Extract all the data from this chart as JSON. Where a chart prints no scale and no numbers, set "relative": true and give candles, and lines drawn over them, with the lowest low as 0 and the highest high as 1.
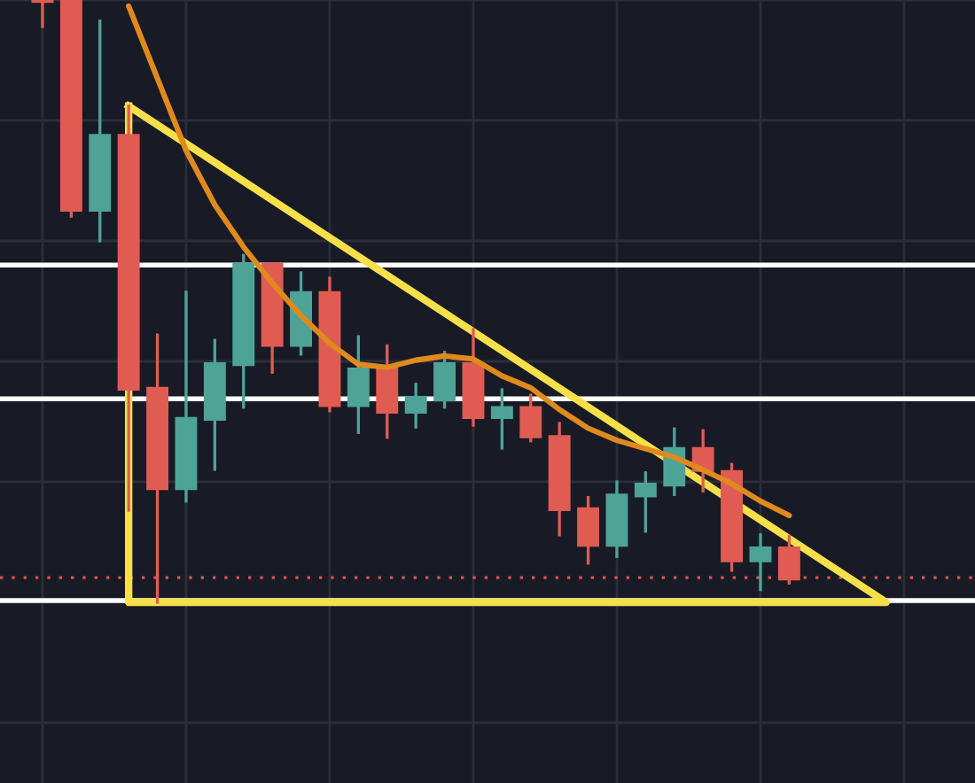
{
  "chart_data": {
    "type": "candlestick",
    "relative": true,
    "tick_labels": false,
    "grid": true,
    "legend": false,
    "categories": [
      null,
      null,
      null,
      null,
      null,
      null,
      null,
      null,
      null,
      null,
      null,
      null,
      null,
      null,
      null,
      null,
      null,
      null,
      null,
      null,
      null,
      null,
      null,
      null,
      null,
      null,
      null
    ],
    "ohlc": [
      [
        1.0,
        1.0,
        0.956,
        0.997
      ],
      [
        1.0,
        1.0,
        0.641,
        0.65
      ],
      [
        0.65,
        0.965,
        0.6,
        0.776
      ],
      [
        0.776,
        0.824,
        0.153,
        0.353
      ],
      [
        0.356,
        0.444,
        0.0,
        0.188
      ],
      [
        0.188,
        0.515,
        0.168,
        0.306
      ],
      [
        0.303,
        0.435,
        0.221,
        0.397
      ],
      [
        0.394,
        0.576,
        0.324,
        0.562
      ],
      [
        0.562,
        0.562,
        0.382,
        0.426
      ],
      [
        0.426,
        0.547,
        0.412,
        0.515
      ],
      [
        0.515,
        0.538,
        0.318,
        0.326
      ],
      [
        0.326,
        0.441,
        0.282,
        0.388
      ],
      [
        0.388,
        0.426,
        0.274,
        0.315
      ],
      [
        0.315,
        0.362,
        0.291,
        0.341
      ],
      [
        0.335,
        0.415,
        0.324,
        0.397
      ],
      [
        0.397,
        0.453,
        0.294,
        0.306
      ],
      [
        0.306,
        0.353,
        0.256,
        0.324
      ],
      [
        0.324,
        0.344,
        0.268,
        0.274
      ],
      [
        0.276,
        0.297,
        0.112,
        0.153
      ],
      [
        0.156,
        0.174,
        0.065,
        0.094
      ],
      [
        0.094,
        0.2,
        0.076,
        0.179
      ],
      [
        0.176,
        0.215,
        0.118,
        0.197
      ],
      [
        0.194,
        0.288,
        0.179,
        0.256
      ],
      [
        0.256,
        0.285,
        0.185,
        0.218
      ],
      [
        0.218,
        0.229,
        0.053,
        0.068
      ],
      [
        0.068,
        0.112,
        0.021,
        0.091
      ],
      [
        0.091,
        0.109,
        0.032,
        0.038
      ]
    ],
    "colors": [
      "#e05c52",
      "#e05c52",
      "#4ea397",
      "#e05c52",
      "#e05c52",
      "#4ea397",
      "#4ea397",
      "#4ea397",
      "#e05c52",
      "#4ea397",
      "#e05c52",
      "#4ea397",
      "#e05c52",
      "#4ea397",
      "#4ea397",
      "#e05c52",
      "#4ea397",
      "#e05c52",
      "#e05c52",
      "#e05c52",
      "#4ea397",
      "#4ea397",
      "#4ea397",
      "#e05c52",
      "#e05c52",
      "#4ea397",
      "#e05c52"
    ],
    "series": [
      {
        "type": "line",
        "color": "#e08a1e",
        "values": [
          null,
          null,
          null,
          0.99,
          0.87,
          0.75,
          0.66,
          0.59,
          0.53,
          0.476,
          0.43,
          0.395,
          0.39,
          0.402,
          0.409,
          0.404,
          0.376,
          0.356,
          0.32,
          0.289,
          0.269,
          0.255,
          0.241,
          0.22,
          0.197,
          0.168,
          0.144
        ]
      }
    ],
    "ref_lines": [
      {
        "axis": "y",
        "value": 0.56,
        "color": "#ffffff",
        "line_style": "solid"
      },
      {
        "axis": "y",
        "value": 0.338,
        "color": "#ffffff",
        "line_style": "solid"
      },
      {
        "axis": "y",
        "value": 0.003,
        "color": "#ffffff",
        "line_style": "solid"
      },
      {
        "axis": "y",
        "value": 0.041,
        "color": "#e05050",
        "line_style": "dotted"
      }
    ]
  }
}
